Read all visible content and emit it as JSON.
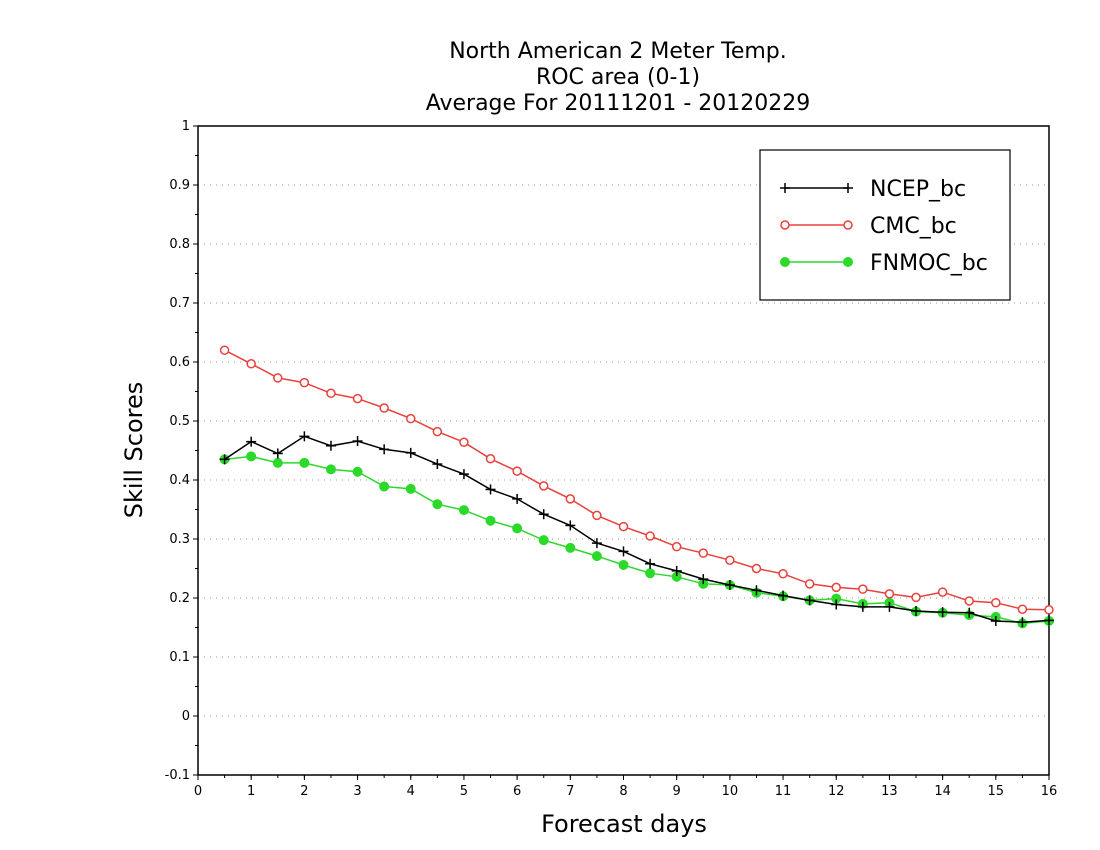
{
  "chart_data": {
    "type": "line",
    "title": [
      "North American 2 Meter Temp.",
      "ROC area (0-1)",
      "Average For 20111201 - 20120229"
    ],
    "xlabel": "Forecast days",
    "ylabel": "Skill Scores",
    "xlim": [
      0,
      16
    ],
    "ylim": [
      -0.1,
      1
    ],
    "xticks": [
      0,
      1,
      2,
      3,
      4,
      5,
      6,
      7,
      8,
      9,
      10,
      11,
      12,
      13,
      14,
      15,
      16
    ],
    "yticks": [
      -0.1,
      0,
      0.1,
      0.2,
      0.3,
      0.4,
      0.5,
      0.6,
      0.7,
      0.8,
      0.9,
      1
    ],
    "ytick_labels": [
      "-0.1",
      "0",
      "0.1",
      "0.2",
      "0.3",
      "0.4",
      "0.5",
      "0.6",
      "0.7",
      "0.8",
      "0.9",
      "1"
    ],
    "grid": true,
    "legend_position": "top-right",
    "x": [
      0.5,
      1.0,
      1.5,
      2.0,
      2.5,
      3.0,
      3.5,
      4.0,
      4.5,
      5.0,
      5.5,
      6.0,
      6.5,
      7.0,
      7.5,
      8.0,
      8.5,
      9.0,
      9.5,
      10.0,
      10.5,
      11.0,
      11.5,
      12.0,
      12.5,
      13.0,
      13.5,
      14.0,
      14.5,
      15.0,
      15.5,
      16.0
    ],
    "series": [
      {
        "name": "NCEP_bc",
        "color": "#000000",
        "marker": "plus",
        "values": [
          0.435,
          0.465,
          0.445,
          0.474,
          0.458,
          0.466,
          0.452,
          0.446,
          0.427,
          0.41,
          0.384,
          0.368,
          0.342,
          0.323,
          0.293,
          0.279,
          0.258,
          0.246,
          0.232,
          0.222,
          0.213,
          0.204,
          0.196,
          0.189,
          0.185,
          0.185,
          0.178,
          0.176,
          0.175,
          0.161,
          0.159,
          0.162
        ]
      },
      {
        "name": "CMC_bc",
        "color": "#e8413b",
        "marker": "open-circle",
        "values": [
          0.62,
          0.597,
          0.573,
          0.565,
          0.547,
          0.538,
          0.522,
          0.504,
          0.482,
          0.464,
          0.436,
          0.415,
          0.39,
          0.368,
          0.34,
          0.321,
          0.305,
          0.287,
          0.276,
          0.264,
          0.25,
          0.241,
          0.224,
          0.218,
          0.215,
          0.207,
          0.201,
          0.21,
          0.195,
          0.192,
          0.181,
          0.18
        ]
      },
      {
        "name": "FNMOC_bc",
        "color": "#2bd92b",
        "marker": "filled-circle",
        "values": [
          0.435,
          0.44,
          0.429,
          0.429,
          0.418,
          0.414,
          0.389,
          0.385,
          0.359,
          0.349,
          0.331,
          0.318,
          0.298,
          0.285,
          0.271,
          0.256,
          0.242,
          0.236,
          0.224,
          0.222,
          0.209,
          0.203,
          0.196,
          0.199,
          0.19,
          0.192,
          0.177,
          0.175,
          0.171,
          0.168,
          0.157,
          0.161
        ]
      }
    ]
  }
}
